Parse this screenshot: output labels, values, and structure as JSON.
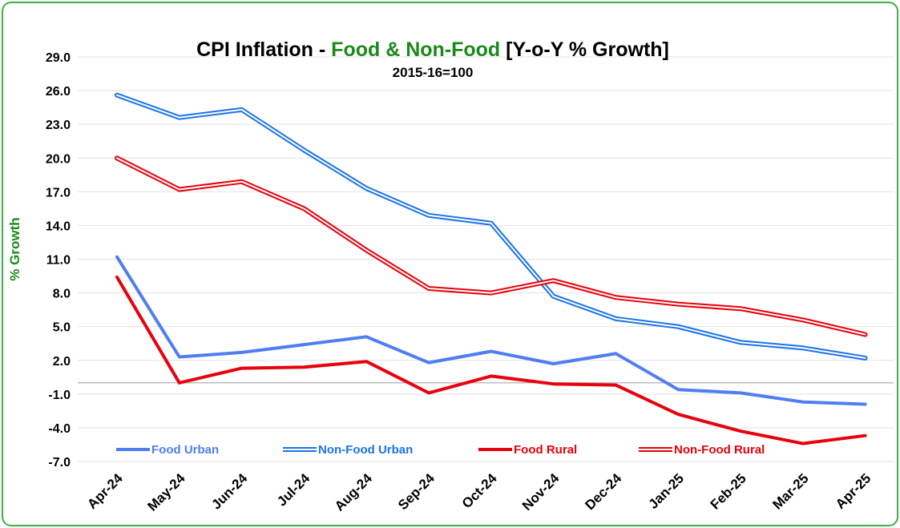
{
  "chart_data": {
    "type": "line",
    "title": {
      "part1": "CPI Inflation - ",
      "part2": "Food & Non-Food",
      "part3": " [Y-o-Y % Growth]",
      "part1_color": "#000000",
      "part2_color": "#1a8a1a",
      "part3_color": "#000000"
    },
    "subtitle": "2015-16=100",
    "ylabel": "% Growth",
    "ylabel_color": "#1a8a1a",
    "ylim": [
      -7.0,
      29.0
    ],
    "yticks": [
      "29.0",
      "26.0",
      "23.0",
      "20.0",
      "17.0",
      "14.0",
      "11.0",
      "8.0",
      "5.0",
      "2.0",
      "-1.0",
      "-4.0",
      "-7.0"
    ],
    "grid": true,
    "legend_position": "bottom-inside",
    "categories": [
      "Apr-24",
      "May-24",
      "Jun-24",
      "Jul-24",
      "Aug-24",
      "Sep-24",
      "Oct-24",
      "Nov-24",
      "Dec-24",
      "Jan-25",
      "Feb-25",
      "Mar-25",
      "Apr-25"
    ],
    "series": [
      {
        "name": "Food Urban",
        "style": "solid",
        "color": "#4f7df2",
        "values": [
          11.2,
          2.3,
          2.7,
          3.4,
          4.1,
          1.8,
          2.8,
          1.7,
          2.6,
          -0.6,
          -0.9,
          -1.7,
          -1.9
        ]
      },
      {
        "name": "Non-Food Urban",
        "style": "double",
        "color": "#1a73e8",
        "values": [
          25.6,
          23.6,
          24.3,
          20.7,
          17.3,
          14.9,
          14.2,
          7.7,
          5.7,
          5.0,
          3.6,
          3.1,
          2.2
        ]
      },
      {
        "name": "Food Rural",
        "style": "solid",
        "color": "#e8000b",
        "values": [
          9.4,
          0.0,
          1.3,
          1.4,
          1.9,
          -0.9,
          0.6,
          -0.1,
          -0.2,
          -2.8,
          -4.3,
          -5.4,
          -4.7
        ]
      },
      {
        "name": "Non-Food Rural",
        "style": "double",
        "color": "#e8000b",
        "values": [
          20.0,
          17.2,
          17.9,
          15.5,
          11.8,
          8.4,
          8.0,
          9.1,
          7.6,
          7.0,
          6.6,
          5.6,
          4.3
        ]
      }
    ]
  }
}
